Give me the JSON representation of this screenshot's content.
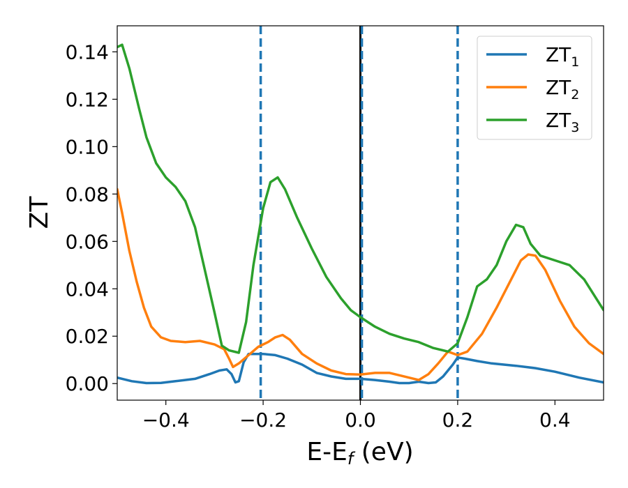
{
  "chart_data": {
    "type": "line",
    "title": "",
    "xlabel_main": "E-E",
    "xlabel_sub": "f",
    "xlabel_unit": " (eV)",
    "ylabel": "ZT",
    "xlim": [
      -0.5,
      0.5
    ],
    "ylim": [
      -0.007,
      0.151
    ],
    "xticks": [
      -0.4,
      -0.2,
      0.0,
      0.2,
      0.4
    ],
    "xtick_labels": [
      "−0.4",
      "−0.2",
      "0.0",
      "0.2",
      "0.4"
    ],
    "yticks": [
      0.0,
      0.02,
      0.04,
      0.06,
      0.08,
      0.1,
      0.12,
      0.14
    ],
    "ytick_labels": [
      "0.00",
      "0.02",
      "0.04",
      "0.06",
      "0.08",
      "0.10",
      "0.12",
      "0.14"
    ],
    "legend_position": "top-right",
    "grid": false,
    "vlines": [
      {
        "x": -0.205,
        "style": "dashed",
        "color": "#1f77b4"
      },
      {
        "x": 0.0,
        "style": "solid",
        "color": "#000000"
      },
      {
        "x": 0.003,
        "style": "dashed",
        "color": "#1f77b4"
      },
      {
        "x": 0.2,
        "style": "dashed",
        "color": "#1f77b4"
      }
    ],
    "series": [
      {
        "base": "ZT",
        "sub": "1",
        "color": "#1f77b4",
        "points": [
          [
            -0.5,
            0.0025
          ],
          [
            -0.47,
            0.001
          ],
          [
            -0.44,
            0.0002
          ],
          [
            -0.41,
            0.0003
          ],
          [
            -0.38,
            0.001
          ],
          [
            -0.34,
            0.002
          ],
          [
            -0.31,
            0.004
          ],
          [
            -0.29,
            0.0055
          ],
          [
            -0.275,
            0.006
          ],
          [
            -0.265,
            0.004
          ],
          [
            -0.257,
            0.0005
          ],
          [
            -0.25,
            0.001
          ],
          [
            -0.24,
            0.009
          ],
          [
            -0.23,
            0.0125
          ],
          [
            -0.2,
            0.0125
          ],
          [
            -0.175,
            0.012
          ],
          [
            -0.15,
            0.0105
          ],
          [
            -0.12,
            0.008
          ],
          [
            -0.09,
            0.0045
          ],
          [
            -0.06,
            0.003
          ],
          [
            -0.03,
            0.002
          ],
          [
            0.0,
            0.002
          ],
          [
            0.03,
            0.0015
          ],
          [
            0.06,
            0.0008
          ],
          [
            0.08,
            0.0002
          ],
          [
            0.1,
            0.0002
          ],
          [
            0.12,
            0.0008
          ],
          [
            0.14,
            0.0002
          ],
          [
            0.155,
            0.0005
          ],
          [
            0.17,
            0.003
          ],
          [
            0.19,
            0.008
          ],
          [
            0.2,
            0.011
          ],
          [
            0.215,
            0.0105
          ],
          [
            0.24,
            0.0095
          ],
          [
            0.27,
            0.0085
          ],
          [
            0.32,
            0.0075
          ],
          [
            0.36,
            0.0065
          ],
          [
            0.4,
            0.005
          ],
          [
            0.45,
            0.0025
          ],
          [
            0.5,
            0.0005
          ]
        ]
      },
      {
        "base": "ZT",
        "sub": "2",
        "color": "#ff7f0e",
        "points": [
          [
            -0.5,
            0.082
          ],
          [
            -0.49,
            0.072
          ],
          [
            -0.475,
            0.056
          ],
          [
            -0.46,
            0.043
          ],
          [
            -0.445,
            0.032
          ],
          [
            -0.43,
            0.024
          ],
          [
            -0.41,
            0.0195
          ],
          [
            -0.39,
            0.018
          ],
          [
            -0.36,
            0.0175
          ],
          [
            -0.33,
            0.018
          ],
          [
            -0.3,
            0.0165
          ],
          [
            -0.28,
            0.0145
          ],
          [
            -0.27,
            0.0105
          ],
          [
            -0.262,
            0.007
          ],
          [
            -0.25,
            0.0085
          ],
          [
            -0.23,
            0.012
          ],
          [
            -0.21,
            0.0155
          ],
          [
            -0.19,
            0.0175
          ],
          [
            -0.175,
            0.0195
          ],
          [
            -0.16,
            0.0205
          ],
          [
            -0.145,
            0.0185
          ],
          [
            -0.12,
            0.0125
          ],
          [
            -0.09,
            0.0085
          ],
          [
            -0.06,
            0.0055
          ],
          [
            -0.03,
            0.004
          ],
          [
            0.0,
            0.0038
          ],
          [
            0.03,
            0.0045
          ],
          [
            0.06,
            0.0045
          ],
          [
            0.08,
            0.0035
          ],
          [
            0.1,
            0.0025
          ],
          [
            0.12,
            0.0015
          ],
          [
            0.14,
            0.004
          ],
          [
            0.16,
            0.0085
          ],
          [
            0.18,
            0.0135
          ],
          [
            0.2,
            0.012
          ],
          [
            0.22,
            0.0135
          ],
          [
            0.25,
            0.021
          ],
          [
            0.28,
            0.032
          ],
          [
            0.31,
            0.044
          ],
          [
            0.33,
            0.052
          ],
          [
            0.345,
            0.0545
          ],
          [
            0.36,
            0.054
          ],
          [
            0.38,
            0.048
          ],
          [
            0.41,
            0.035
          ],
          [
            0.44,
            0.024
          ],
          [
            0.47,
            0.017
          ],
          [
            0.5,
            0.0125
          ]
        ]
      },
      {
        "base": "ZT",
        "sub": "3",
        "color": "#2ca02c",
        "points": [
          [
            -0.5,
            0.142
          ],
          [
            -0.49,
            0.143
          ],
          [
            -0.475,
            0.133
          ],
          [
            -0.455,
            0.116
          ],
          [
            -0.44,
            0.104
          ],
          [
            -0.42,
            0.093
          ],
          [
            -0.4,
            0.087
          ],
          [
            -0.38,
            0.083
          ],
          [
            -0.36,
            0.077
          ],
          [
            -0.34,
            0.066
          ],
          [
            -0.32,
            0.048
          ],
          [
            -0.3,
            0.03
          ],
          [
            -0.285,
            0.016
          ],
          [
            -0.27,
            0.014
          ],
          [
            -0.25,
            0.013
          ],
          [
            -0.235,
            0.026
          ],
          [
            -0.22,
            0.05
          ],
          [
            -0.2,
            0.074
          ],
          [
            -0.185,
            0.085
          ],
          [
            -0.17,
            0.087
          ],
          [
            -0.155,
            0.082
          ],
          [
            -0.13,
            0.07
          ],
          [
            -0.1,
            0.057
          ],
          [
            -0.07,
            0.045
          ],
          [
            -0.04,
            0.036
          ],
          [
            -0.02,
            0.031
          ],
          [
            0.0,
            0.028
          ],
          [
            0.03,
            0.024
          ],
          [
            0.06,
            0.021
          ],
          [
            0.09,
            0.019
          ],
          [
            0.12,
            0.0175
          ],
          [
            0.15,
            0.015
          ],
          [
            0.18,
            0.0135
          ],
          [
            0.2,
            0.017
          ],
          [
            0.22,
            0.028
          ],
          [
            0.24,
            0.041
          ],
          [
            0.26,
            0.044
          ],
          [
            0.28,
            0.05
          ],
          [
            0.3,
            0.06
          ],
          [
            0.32,
            0.067
          ],
          [
            0.335,
            0.066
          ],
          [
            0.35,
            0.059
          ],
          [
            0.37,
            0.054
          ],
          [
            0.4,
            0.052
          ],
          [
            0.43,
            0.05
          ],
          [
            0.46,
            0.044
          ],
          [
            0.5,
            0.031
          ]
        ]
      }
    ]
  }
}
